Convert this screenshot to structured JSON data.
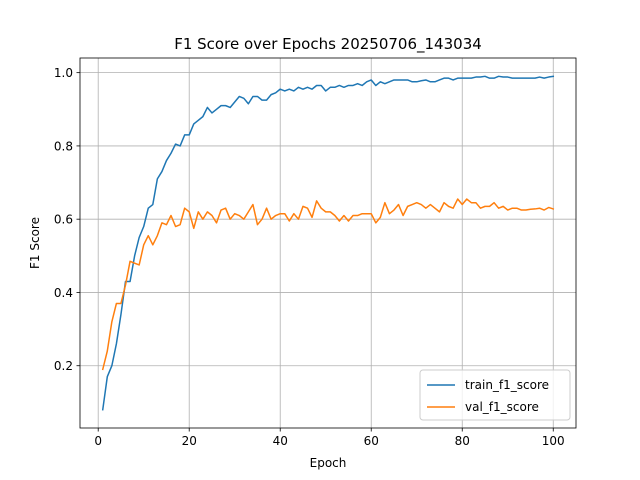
{
  "chart_data": {
    "type": "line",
    "title": "F1 Score over Epochs 20250706_143034",
    "xlabel": "Epoch",
    "ylabel": "F1 Score",
    "xlim": [
      -4,
      105
    ],
    "ylim": [
      0.03,
      1.04
    ],
    "xticks": [
      0,
      20,
      40,
      60,
      80,
      100
    ],
    "yticks": [
      0.2,
      0.4,
      0.6,
      0.8,
      1.0
    ],
    "xtick_labels": [
      "0",
      "20",
      "40",
      "60",
      "80",
      "100"
    ],
    "ytick_labels": [
      "0.2",
      "0.4",
      "0.6",
      "0.8",
      "1.0"
    ],
    "grid": true,
    "legend_position": "lower-right",
    "x": [
      1,
      2,
      3,
      4,
      5,
      6,
      7,
      8,
      9,
      10,
      11,
      12,
      13,
      14,
      15,
      16,
      17,
      18,
      19,
      20,
      21,
      22,
      23,
      24,
      25,
      26,
      27,
      28,
      29,
      30,
      31,
      32,
      33,
      34,
      35,
      36,
      37,
      38,
      39,
      40,
      41,
      42,
      43,
      44,
      45,
      46,
      47,
      48,
      49,
      50,
      51,
      52,
      53,
      54,
      55,
      56,
      57,
      58,
      59,
      60,
      61,
      62,
      63,
      64,
      65,
      66,
      67,
      68,
      69,
      70,
      71,
      72,
      73,
      74,
      75,
      76,
      77,
      78,
      79,
      80,
      81,
      82,
      83,
      84,
      85,
      86,
      87,
      88,
      89,
      90,
      91,
      92,
      93,
      94,
      95,
      96,
      97,
      98,
      99,
      100
    ],
    "series": [
      {
        "name": "train_f1_score",
        "color": "#1f77b4",
        "values": [
          0.08,
          0.17,
          0.2,
          0.26,
          0.34,
          0.43,
          0.43,
          0.5,
          0.55,
          0.58,
          0.63,
          0.64,
          0.71,
          0.73,
          0.76,
          0.78,
          0.805,
          0.8,
          0.83,
          0.83,
          0.86,
          0.87,
          0.88,
          0.905,
          0.89,
          0.9,
          0.91,
          0.91,
          0.905,
          0.92,
          0.935,
          0.93,
          0.915,
          0.935,
          0.935,
          0.925,
          0.925,
          0.94,
          0.945,
          0.955,
          0.95,
          0.955,
          0.95,
          0.96,
          0.955,
          0.96,
          0.955,
          0.965,
          0.965,
          0.95,
          0.96,
          0.96,
          0.965,
          0.96,
          0.965,
          0.965,
          0.97,
          0.965,
          0.975,
          0.98,
          0.965,
          0.975,
          0.97,
          0.975,
          0.98,
          0.98,
          0.98,
          0.98,
          0.975,
          0.975,
          0.978,
          0.98,
          0.975,
          0.975,
          0.98,
          0.985,
          0.985,
          0.98,
          0.985,
          0.985,
          0.985,
          0.985,
          0.988,
          0.988,
          0.99,
          0.985,
          0.985,
          0.99,
          0.988,
          0.988,
          0.985,
          0.985,
          0.985,
          0.985,
          0.985,
          0.985,
          0.988,
          0.985,
          0.988,
          0.99
        ]
      },
      {
        "name": "val_f1_score",
        "color": "#ff7f0e",
        "values": [
          0.19,
          0.24,
          0.32,
          0.37,
          0.37,
          0.42,
          0.485,
          0.48,
          0.475,
          0.53,
          0.555,
          0.53,
          0.555,
          0.59,
          0.585,
          0.61,
          0.58,
          0.585,
          0.63,
          0.62,
          0.575,
          0.62,
          0.6,
          0.62,
          0.61,
          0.59,
          0.625,
          0.63,
          0.6,
          0.615,
          0.61,
          0.6,
          0.62,
          0.64,
          0.585,
          0.6,
          0.63,
          0.6,
          0.61,
          0.615,
          0.615,
          0.595,
          0.615,
          0.6,
          0.635,
          0.63,
          0.605,
          0.65,
          0.63,
          0.62,
          0.62,
          0.61,
          0.595,
          0.61,
          0.595,
          0.61,
          0.61,
          0.615,
          0.615,
          0.615,
          0.59,
          0.605,
          0.645,
          0.615,
          0.625,
          0.64,
          0.61,
          0.635,
          0.64,
          0.645,
          0.64,
          0.63,
          0.64,
          0.63,
          0.62,
          0.645,
          0.635,
          0.63,
          0.655,
          0.64,
          0.655,
          0.645,
          0.645,
          0.63,
          0.635,
          0.635,
          0.645,
          0.63,
          0.635,
          0.625,
          0.63,
          0.63,
          0.625,
          0.625,
          0.627,
          0.628,
          0.63,
          0.625,
          0.632,
          0.628
        ]
      }
    ]
  }
}
